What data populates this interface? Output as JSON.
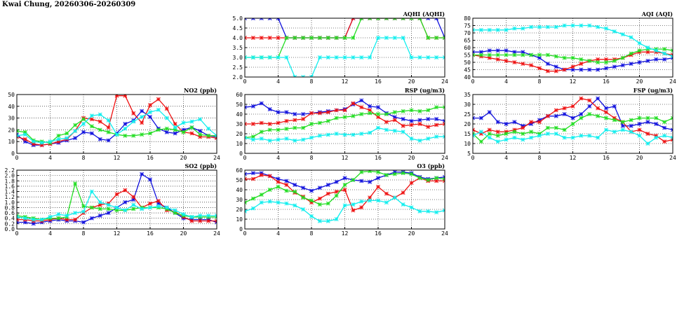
{
  "page": {
    "title": "Kwai Chung, 20260306-20260309"
  },
  "colors": {
    "blue": "#1010dd",
    "red": "#ee1111",
    "green": "#22dd22",
    "cyan": "#11eeee"
  },
  "chart_data": [
    {
      "id": "no2",
      "type": "line",
      "title": "NO2 (ppb)",
      "xlim": [
        0,
        24
      ],
      "ylim": [
        0,
        50
      ],
      "xticks": [
        0,
        4,
        8,
        12,
        16,
        20,
        24
      ],
      "yticks": [
        0,
        10,
        20,
        30,
        40,
        50
      ],
      "x": [
        0,
        1,
        2,
        3,
        4,
        5,
        6,
        7,
        8,
        9,
        10,
        11,
        12,
        13,
        14,
        15,
        16,
        17,
        18,
        19,
        20,
        21,
        22,
        23,
        24
      ],
      "series": [
        {
          "color": "blue",
          "values": [
            16,
            10,
            7,
            7,
            8,
            9,
            11,
            13,
            18,
            17,
            12,
            11,
            17,
            25,
            28,
            36,
            31,
            21,
            18,
            17,
            20,
            22,
            19,
            15,
            14
          ]
        },
        {
          "color": "red",
          "values": [
            14,
            12,
            8,
            7,
            8,
            10,
            12,
            19,
            30,
            29,
            27,
            22,
            49,
            49,
            34,
            26,
            41,
            46,
            38,
            25,
            18,
            17,
            14,
            14,
            13
          ]
        },
        {
          "color": "green",
          "values": [
            19,
            18,
            11,
            10,
            9,
            15,
            17,
            24,
            29,
            23,
            20,
            18,
            16,
            15,
            15,
            16,
            17,
            20,
            21,
            20,
            18,
            22,
            16,
            15,
            15
          ]
        },
        {
          "color": "cyan",
          "values": [
            15,
            16,
            10,
            9,
            10,
            12,
            13,
            19,
            25,
            32,
            33,
            28,
            16,
            21,
            27,
            31,
            35,
            37,
            30,
            22,
            26,
            27,
            29,
            21,
            15
          ]
        }
      ]
    },
    {
      "id": "so2",
      "type": "line",
      "title": "SO2 (ppb)",
      "xlim": [
        0,
        24
      ],
      "ylim": [
        0,
        2.2
      ],
      "xticks": [
        0,
        4,
        8,
        12,
        16,
        20,
        24
      ],
      "yticks": [
        0.0,
        0.2,
        0.4,
        0.6,
        0.8,
        1.0,
        1.2,
        1.4,
        1.6,
        1.8,
        2.0,
        2.2
      ],
      "x": [
        0,
        1,
        2,
        3,
        4,
        5,
        6,
        7,
        8,
        9,
        10,
        11,
        12,
        13,
        14,
        15,
        16,
        17,
        18,
        19,
        20,
        21,
        22,
        23,
        24
      ],
      "series": [
        {
          "color": "blue",
          "values": [
            0.25,
            0.25,
            0.2,
            0.25,
            0.3,
            0.35,
            0.3,
            0.3,
            0.25,
            0.4,
            0.5,
            0.6,
            0.8,
            1.0,
            1.1,
            2.05,
            1.85,
            0.95,
            0.8,
            0.6,
            0.4,
            0.35,
            0.35,
            0.35,
            0.25
          ]
        },
        {
          "color": "red",
          "values": [
            0.35,
            0.35,
            0.3,
            0.3,
            0.35,
            0.4,
            0.35,
            0.35,
            0.6,
            0.8,
            0.9,
            0.95,
            1.3,
            1.45,
            1.2,
            0.8,
            0.95,
            1.05,
            0.7,
            0.65,
            0.45,
            0.3,
            0.3,
            0.3,
            0.3
          ]
        },
        {
          "color": "green",
          "values": [
            0.5,
            0.45,
            0.4,
            0.35,
            0.4,
            0.4,
            0.45,
            1.7,
            0.85,
            0.8,
            0.75,
            0.75,
            0.7,
            0.7,
            0.75,
            0.8,
            0.8,
            0.8,
            0.75,
            0.6,
            0.5,
            0.45,
            0.45,
            0.45,
            0.45
          ]
        },
        {
          "color": "cyan",
          "values": [
            0.45,
            0.4,
            0.35,
            0.35,
            0.45,
            0.55,
            0.5,
            0.6,
            0.65,
            1.4,
            1.0,
            0.9,
            0.8,
            0.7,
            0.9,
            0.75,
            0.8,
            0.85,
            0.8,
            0.7,
            0.55,
            0.45,
            0.5,
            0.5,
            0.5
          ]
        }
      ]
    },
    {
      "id": "aqhi",
      "type": "line",
      "title": "AQHI (AQHI)",
      "xlim": [
        0,
        24
      ],
      "ylim": [
        2.0,
        5.0
      ],
      "xticks": [
        0,
        4,
        8,
        12,
        16,
        20,
        24
      ],
      "yticks": [
        2.0,
        2.5,
        3.0,
        3.5,
        4.0,
        4.5,
        5.0
      ],
      "x": [
        0,
        1,
        2,
        3,
        4,
        5,
        6,
        7,
        8,
        9,
        10,
        11,
        12,
        13,
        14,
        15,
        16,
        17,
        18,
        19,
        20,
        21,
        22,
        23,
        24
      ],
      "series": [
        {
          "color": "blue",
          "values": [
            5,
            5,
            5,
            5,
            5,
            4,
            4,
            4,
            4,
            4,
            4,
            4,
            4,
            5,
            5,
            5,
            5,
            5,
            5,
            5,
            5,
            5,
            5,
            5,
            4
          ]
        },
        {
          "color": "red",
          "values": [
            4,
            4,
            4,
            4,
            4,
            4,
            4,
            4,
            4,
            4,
            4,
            4,
            4,
            5,
            5,
            5,
            5,
            5,
            5,
            5,
            5,
            5,
            4,
            4,
            4
          ]
        },
        {
          "color": "green",
          "values": [
            3,
            3,
            3,
            3,
            3,
            4,
            4,
            4,
            4,
            4,
            4,
            4,
            4,
            4,
            5,
            5,
            5,
            5,
            5,
            5,
            5,
            5,
            4,
            4,
            4
          ]
        },
        {
          "color": "cyan",
          "values": [
            3,
            3,
            3,
            3,
            3,
            3,
            2,
            2,
            2,
            3,
            3,
            3,
            3,
            3,
            3,
            3,
            4,
            4,
            4,
            4,
            3,
            3,
            3,
            3,
            3
          ]
        }
      ]
    },
    {
      "id": "rsp",
      "type": "line",
      "title": "RSP (ug/m3)",
      "xlim": [
        0,
        24
      ],
      "ylim": [
        0,
        60
      ],
      "xticks": [
        0,
        4,
        8,
        12,
        16,
        20,
        24
      ],
      "yticks": [
        0,
        10,
        20,
        30,
        40,
        50,
        60
      ],
      "x": [
        0,
        1,
        2,
        3,
        4,
        5,
        6,
        7,
        8,
        9,
        10,
        11,
        12,
        13,
        14,
        15,
        16,
        17,
        18,
        19,
        20,
        21,
        22,
        23,
        24
      ],
      "series": [
        {
          "color": "blue",
          "values": [
            47,
            48,
            51,
            45,
            42,
            42,
            40,
            40,
            41,
            42,
            43,
            44,
            45,
            50,
            54,
            48,
            47,
            41,
            37,
            35,
            33,
            34,
            35,
            35,
            33
          ]
        },
        {
          "color": "red",
          "values": [
            30,
            30,
            31,
            30,
            31,
            33,
            34,
            35,
            41,
            41,
            42,
            44,
            44,
            51,
            47,
            44,
            37,
            32,
            34,
            28,
            29,
            30,
            27,
            29,
            30
          ]
        },
        {
          "color": "green",
          "values": [
            16,
            17,
            22,
            24,
            24,
            25,
            26,
            26,
            30,
            31,
            33,
            36,
            37,
            38,
            40,
            41,
            40,
            40,
            42,
            43,
            44,
            43,
            44,
            47,
            47
          ]
        },
        {
          "color": "cyan",
          "values": [
            16,
            14,
            15,
            13,
            14,
            15,
            13,
            14,
            16,
            18,
            19,
            20,
            19,
            19,
            20,
            21,
            26,
            24,
            23,
            22,
            15,
            13,
            15,
            17,
            17
          ]
        }
      ]
    },
    {
      "id": "o3",
      "type": "line",
      "title": "O3 (ppb)",
      "xlim": [
        0,
        24
      ],
      "ylim": [
        0,
        60
      ],
      "xticks": [
        0,
        4,
        8,
        12,
        16,
        20,
        24
      ],
      "yticks": [
        0,
        10,
        20,
        30,
        40,
        50,
        60
      ],
      "x": [
        0,
        1,
        2,
        3,
        4,
        5,
        6,
        7,
        8,
        9,
        10,
        11,
        12,
        13,
        14,
        15,
        16,
        17,
        18,
        19,
        20,
        21,
        22,
        23,
        24
      ],
      "series": [
        {
          "color": "blue",
          "values": [
            56,
            57,
            57,
            54,
            51,
            49,
            45,
            42,
            39,
            42,
            45,
            48,
            52,
            50,
            49,
            48,
            52,
            55,
            58,
            58,
            57,
            53,
            51,
            52,
            53
          ]
        },
        {
          "color": "red",
          "values": [
            51,
            51,
            55,
            54,
            48,
            45,
            37,
            33,
            27,
            31,
            36,
            38,
            40,
            19,
            22,
            32,
            43,
            36,
            32,
            37,
            47,
            52,
            49,
            49,
            49
          ]
        },
        {
          "color": "green",
          "values": [
            27,
            31,
            35,
            40,
            43,
            39,
            38,
            32,
            29,
            25,
            26,
            34,
            45,
            50,
            58,
            59,
            58,
            55,
            56,
            57,
            56,
            52,
            50,
            52,
            51
          ]
        },
        {
          "color": "cyan",
          "values": [
            18,
            21,
            27,
            28,
            27,
            26,
            24,
            20,
            13,
            8,
            8,
            10,
            24,
            25,
            28,
            29,
            29,
            27,
            32,
            25,
            22,
            18,
            18,
            17,
            19
          ]
        }
      ]
    },
    {
      "id": "aqi",
      "type": "line",
      "title": "AQI (AQI)",
      "xlim": [
        0,
        24
      ],
      "ylim": [
        40,
        80
      ],
      "xticks": [
        0,
        4,
        8,
        12,
        16,
        20,
        24
      ],
      "yticks": [
        40,
        45,
        50,
        55,
        60,
        65,
        70,
        75,
        80
      ],
      "x": [
        0,
        1,
        2,
        3,
        4,
        5,
        6,
        7,
        8,
        9,
        10,
        11,
        12,
        13,
        14,
        15,
        16,
        17,
        18,
        19,
        20,
        21,
        22,
        23,
        24
      ],
      "series": [
        {
          "color": "blue",
          "values": [
            57,
            57,
            58,
            58,
            58,
            57,
            57,
            55,
            53,
            49,
            47,
            45,
            45,
            45,
            45,
            45,
            46,
            47,
            48,
            49,
            50,
            51,
            52,
            52,
            53
          ]
        },
        {
          "color": "red",
          "values": [
            55,
            54,
            53,
            52,
            51,
            50,
            49,
            48,
            46,
            44,
            44,
            45,
            47,
            49,
            51,
            52,
            52,
            52,
            53,
            55,
            57,
            57,
            57,
            56,
            55
          ]
        },
        {
          "color": "green",
          "values": [
            55,
            55,
            55,
            55,
            55,
            55,
            55,
            55,
            55,
            55,
            54,
            53,
            53,
            52,
            51,
            50,
            50,
            51,
            53,
            56,
            58,
            59,
            59,
            59,
            58
          ]
        },
        {
          "color": "cyan",
          "values": [
            72,
            72,
            72,
            72,
            72,
            73,
            73,
            74,
            74,
            74,
            74,
            75,
            75,
            75,
            75,
            74,
            73,
            71,
            69,
            67,
            63,
            60,
            58,
            56,
            54
          ]
        }
      ]
    },
    {
      "id": "fsp",
      "type": "line",
      "title": "FSP (ug/m3)",
      "xlim": [
        0,
        24
      ],
      "ylim": [
        5,
        35
      ],
      "xticks": [
        0,
        4,
        8,
        12,
        16,
        20,
        24
      ],
      "yticks": [
        5,
        10,
        15,
        20,
        25,
        30,
        35
      ],
      "x": [
        0,
        1,
        2,
        3,
        4,
        5,
        6,
        7,
        8,
        9,
        10,
        11,
        12,
        13,
        14,
        15,
        16,
        17,
        18,
        19,
        20,
        21,
        22,
        23,
        24
      ],
      "series": [
        {
          "color": "blue",
          "values": [
            23,
            23,
            26,
            21,
            20,
            21,
            19,
            20,
            22,
            24,
            24,
            25,
            23,
            25,
            29,
            33,
            28,
            29,
            19,
            19,
            20,
            21,
            20,
            18,
            17
          ]
        },
        {
          "color": "red",
          "values": [
            17,
            15,
            17,
            16,
            16,
            17,
            18,
            21,
            21,
            24,
            27,
            28,
            29,
            33,
            32,
            28,
            26,
            23,
            21,
            16,
            17,
            15,
            14,
            11,
            12
          ]
        },
        {
          "color": "green",
          "values": [
            15,
            11,
            15,
            14,
            15,
            16,
            15,
            16,
            15,
            18,
            18,
            17,
            20,
            23,
            25,
            24,
            23,
            22,
            21,
            22,
            23,
            23,
            23,
            21,
            23
          ]
        },
        {
          "color": "cyan",
          "values": [
            14,
            16,
            13,
            11,
            12,
            13,
            12,
            13,
            14,
            15,
            15,
            13,
            13,
            14,
            14,
            13,
            17,
            16,
            17,
            16,
            14,
            10,
            13,
            14,
            13
          ]
        }
      ]
    }
  ]
}
